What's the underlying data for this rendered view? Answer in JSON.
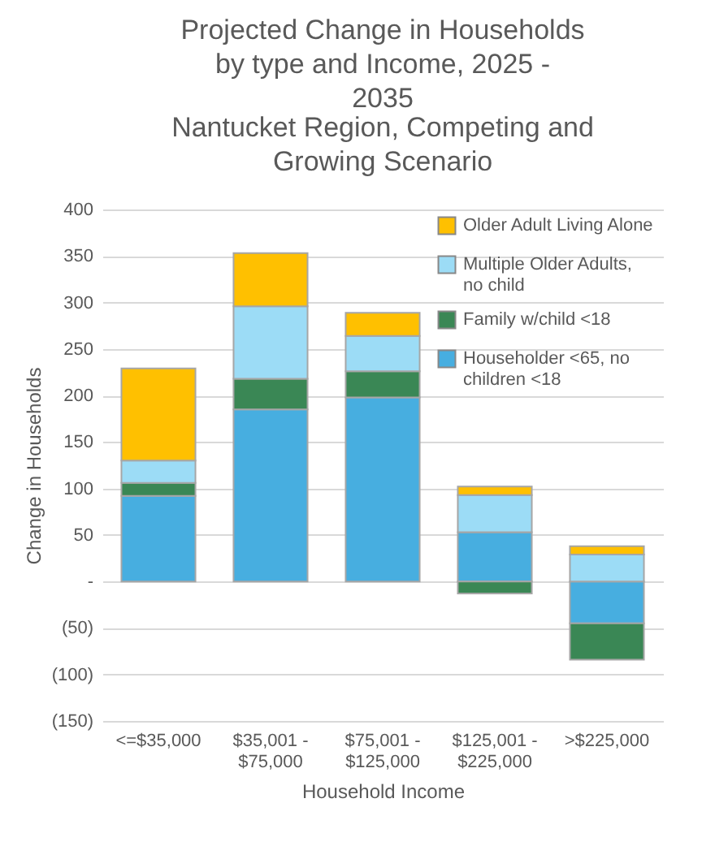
{
  "chart_data": {
    "type": "bar",
    "title": "Projected Change in Households by type and Income, 2025 - 2035",
    "subtitle": "Nantucket Region, Competing and Growing Scenario",
    "xlabel": "Household Income",
    "ylabel": "Change in Households",
    "categories": [
      "<=$35,000",
      "$35,001 - $75,000",
      "$75,001 - $125,000",
      "$125,001 - $225,000",
      ">$225,000"
    ],
    "series": [
      {
        "name": "Householder <65, no children <18",
        "color": "#47aee0",
        "values": [
          92,
          185,
          198,
          53,
          -45
        ]
      },
      {
        "name": "Family w/child <18",
        "color": "#3a8755",
        "values": [
          14,
          33,
          28,
          -13,
          -39
        ]
      },
      {
        "name": "Multiple Older Adults, no child",
        "color": "#9cdcf6",
        "values": [
          24,
          78,
          38,
          40,
          29
        ]
      },
      {
        "name": "Older Adult Living Alone",
        "color": "#ffc000",
        "values": [
          99,
          57,
          25,
          9,
          9
        ]
      }
    ],
    "stacked": true,
    "ylim": [
      -150,
      400
    ],
    "yticks": [
      {
        "value": -150,
        "label": "(150)"
      },
      {
        "value": -100,
        "label": "(100)"
      },
      {
        "value": -50,
        "label": "(50)"
      },
      {
        "value": 0,
        "label": "-"
      },
      50,
      100,
      150,
      200,
      250,
      300,
      350,
      400
    ],
    "grid": "y",
    "legend": "top right"
  }
}
